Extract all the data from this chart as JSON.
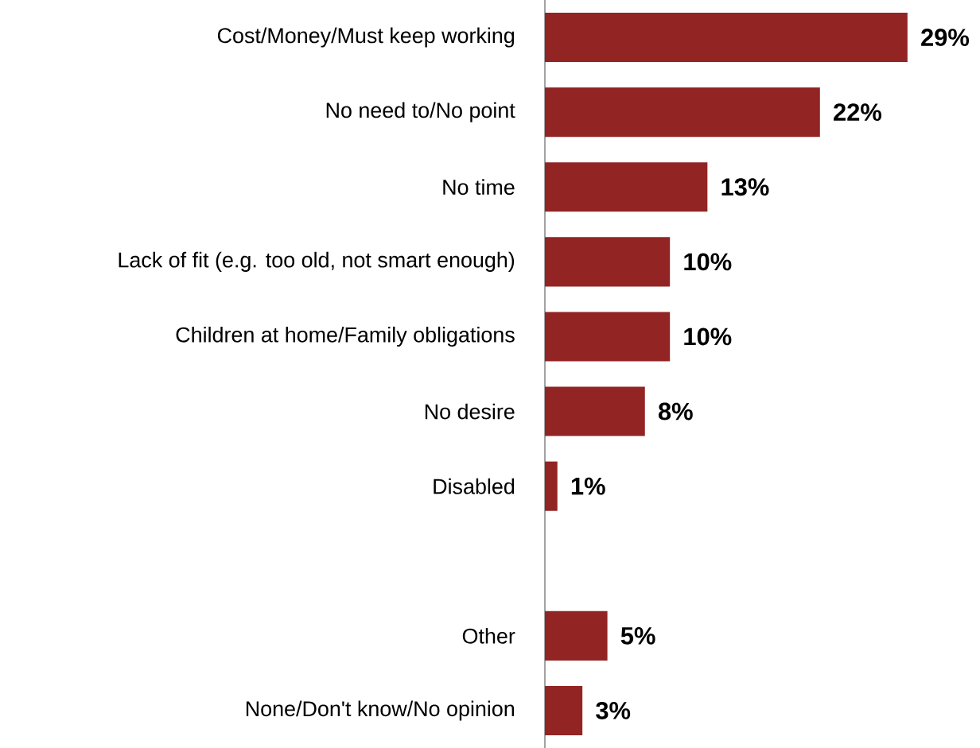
{
  "chart_data": {
    "type": "bar",
    "orientation": "horizontal",
    "categories": [
      "Cost/Money/Must keep working",
      "No need to/No point",
      "No time",
      "Lack of fit (e.g. too old, not smart enough)",
      "Children at home/Family obligations",
      "No desire",
      "Disabled",
      null,
      "Other",
      "None/Don't know/No opinion"
    ],
    "values": [
      29,
      22,
      13,
      10,
      10,
      8,
      1,
      null,
      5,
      3
    ],
    "value_labels": [
      "29%",
      "22%",
      "13%",
      "10%",
      "10%",
      "8%",
      "1%",
      null,
      "5%",
      "3%"
    ],
    "color": "#922424"
  }
}
